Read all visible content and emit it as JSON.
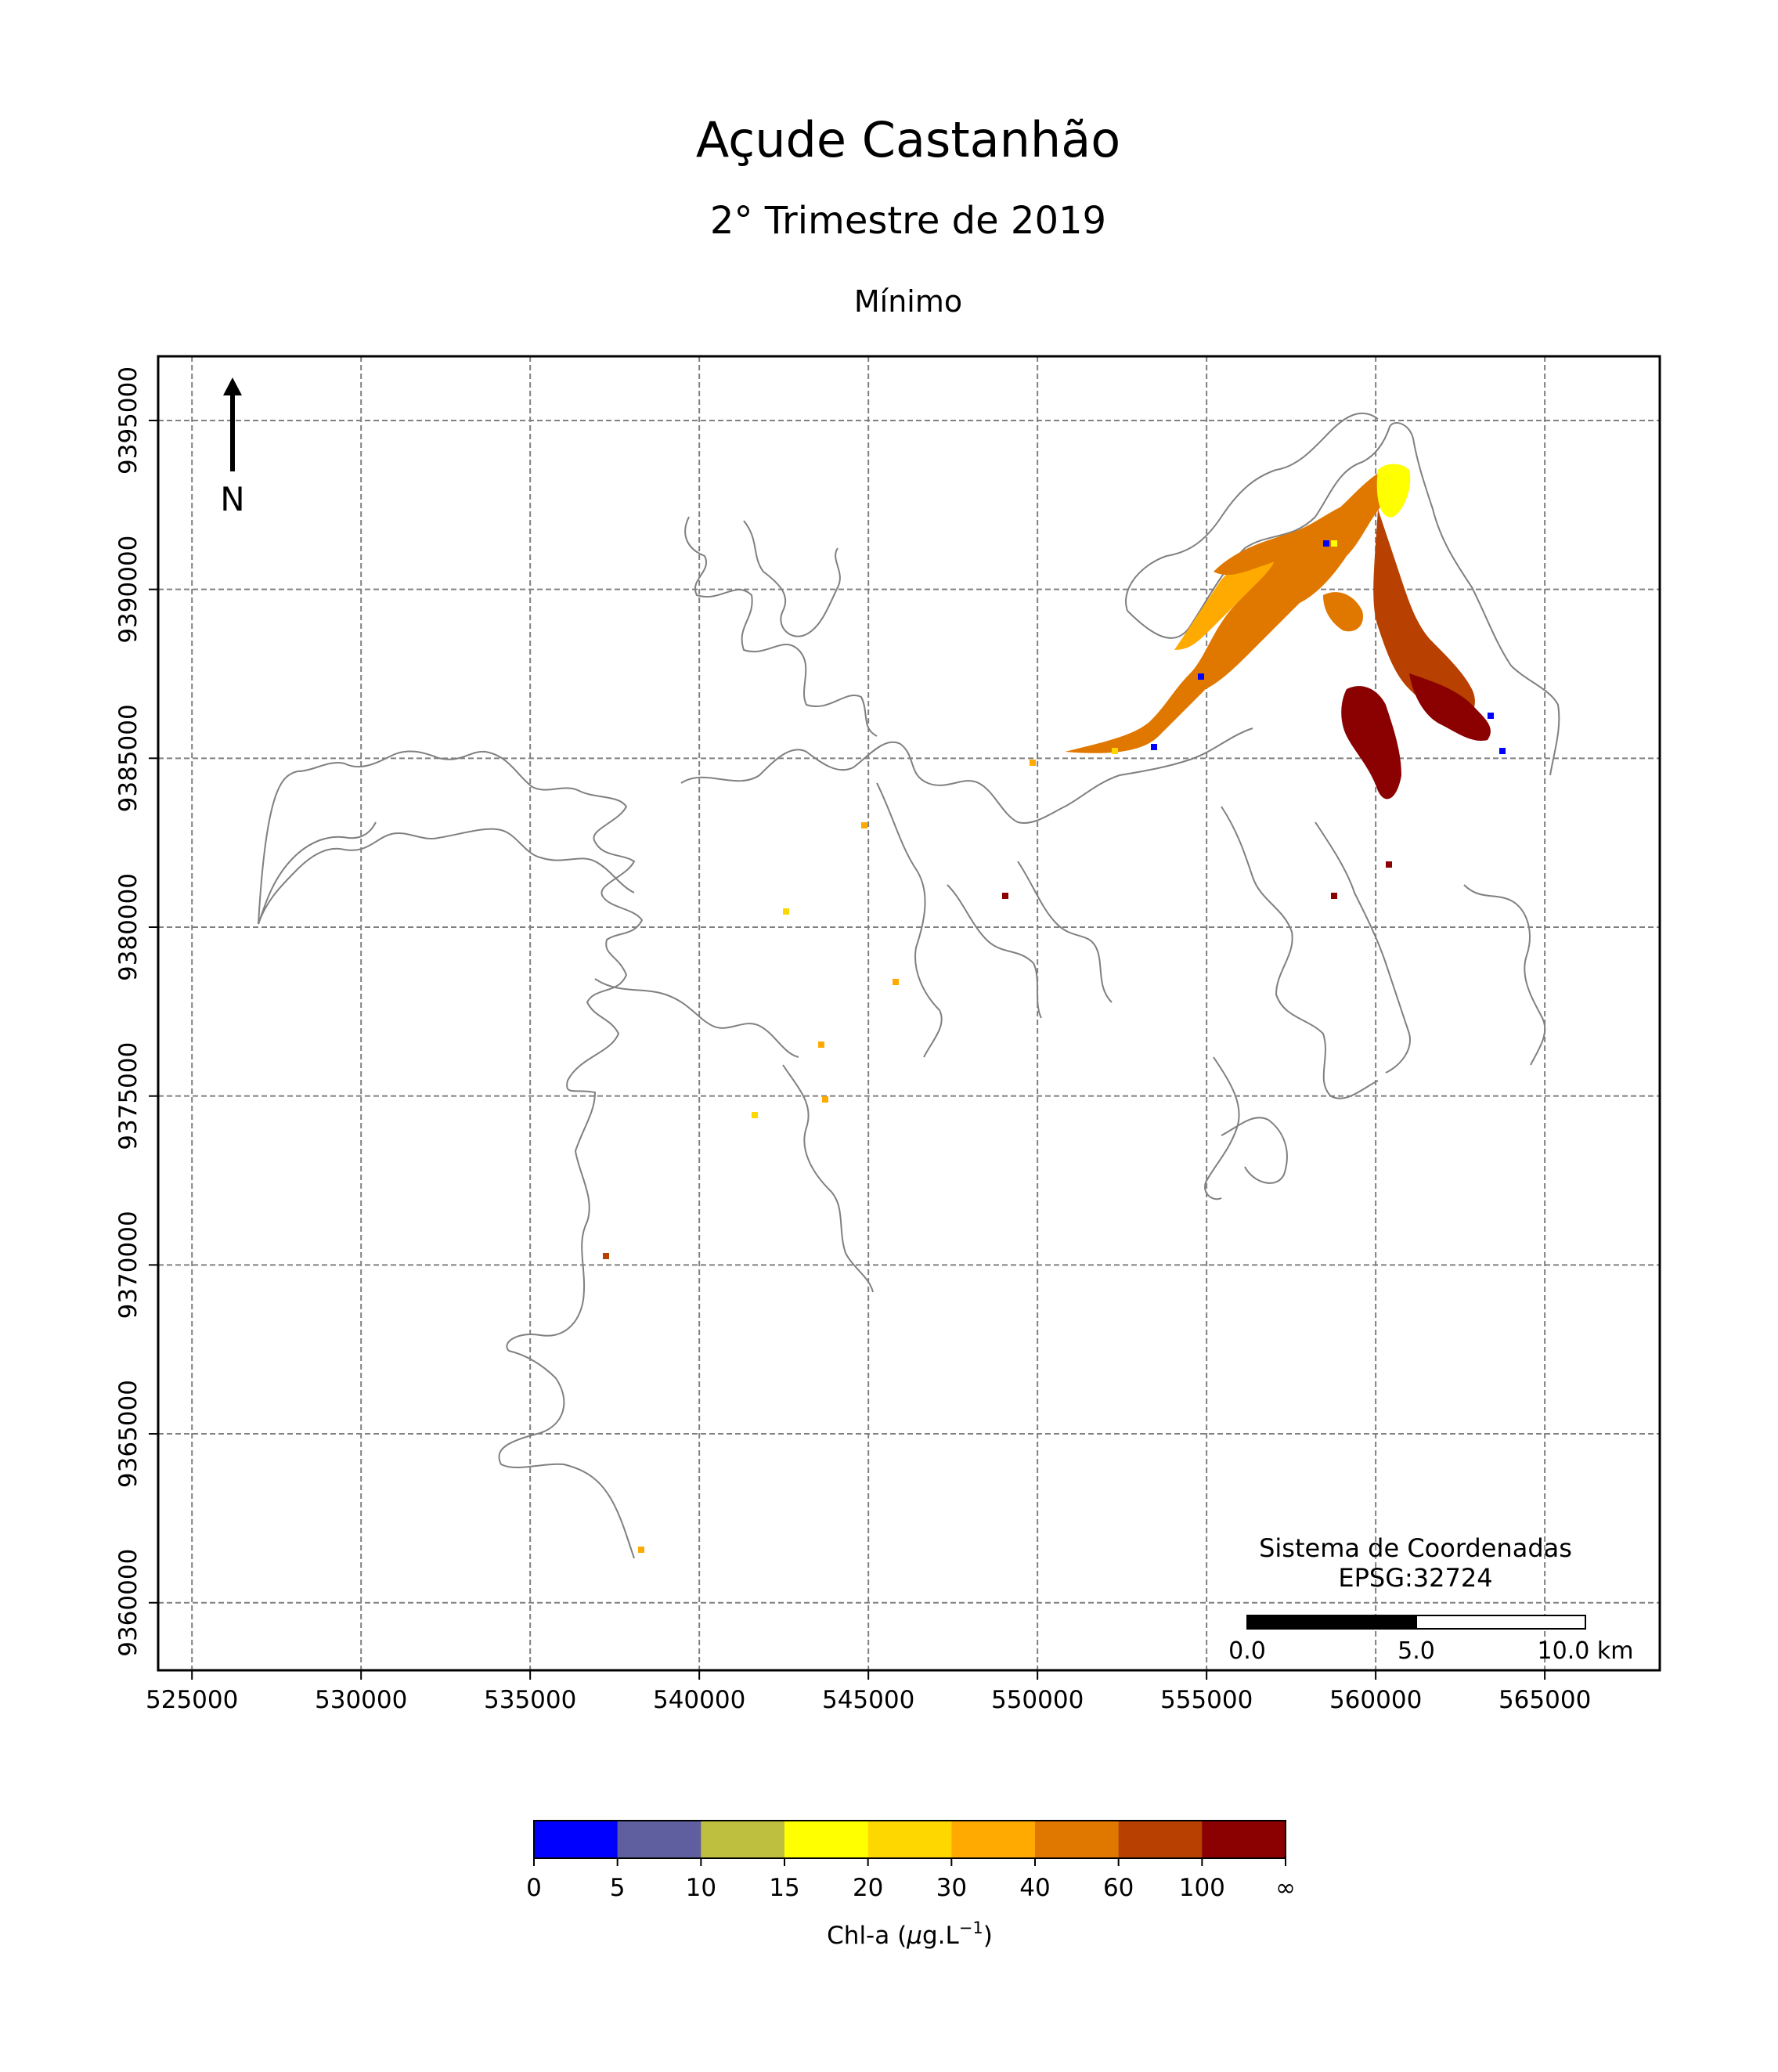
{
  "title": "Açude Castanhão",
  "subtitle": "2° Trimestre de 2019",
  "statistic": "Mínimo",
  "north_arrow": {
    "label": "N"
  },
  "crs_note": {
    "line1": "Sistema de Coordenadas",
    "line2": "EPSG:32724"
  },
  "scale_bar": {
    "labels": [
      "0.0",
      "5.0",
      "10.0 km"
    ],
    "length_km": 10
  },
  "map_axes": {
    "x_ticks": [
      525000,
      530000,
      535000,
      540000,
      545000,
      550000,
      555000,
      560000,
      565000
    ],
    "y_ticks": [
      9360000,
      9365000,
      9370000,
      9375000,
      9380000,
      9385000,
      9390000,
      9395000
    ],
    "xlim": [
      524000,
      568400
    ],
    "ylim": [
      9358000,
      9396900
    ],
    "grid": true
  },
  "colorbar": {
    "label_prefix": "Chl-a (",
    "label_mu": "μ",
    "label_unit": "g.L",
    "label_exp": "−1",
    "label_suffix": ")",
    "boundaries": [
      "0",
      "5",
      "10",
      "15",
      "20",
      "30",
      "40",
      "60",
      "100",
      "∞"
    ],
    "colors": [
      "#0000ff",
      "#5f5f9f",
      "#bfbf3f",
      "#ffff00",
      "#ffd700",
      "#ffaa00",
      "#e07800",
      "#b84000",
      "#8b0000"
    ]
  },
  "colors": {
    "outline": "#808080",
    "grid": "#808080",
    "frame": "#000000"
  }
}
